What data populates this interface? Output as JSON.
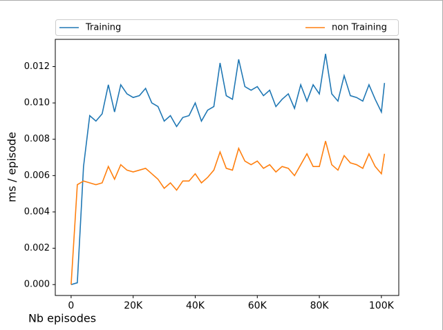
{
  "chart_data": {
    "type": "line",
    "xlabel": "Nb episodes",
    "ylabel": "ms / episode",
    "x": [
      0,
      2000,
      4000,
      6000,
      8000,
      10000,
      12000,
      14000,
      16000,
      18000,
      20000,
      22000,
      24000,
      26000,
      28000,
      30000,
      32000,
      34000,
      36000,
      38000,
      40000,
      42000,
      44000,
      46000,
      48000,
      50000,
      52000,
      54000,
      56000,
      58000,
      60000,
      62000,
      64000,
      66000,
      68000,
      70000,
      72000,
      74000,
      76000,
      78000,
      80000,
      82000,
      84000,
      86000,
      88000,
      90000,
      92000,
      94000,
      96000,
      98000,
      100000,
      101000
    ],
    "series": [
      {
        "name": "Training",
        "color": "#1f77b4",
        "values": [
          0.0,
          0.0001,
          0.0065,
          0.0093,
          0.009,
          0.0094,
          0.011,
          0.0095,
          0.011,
          0.0105,
          0.0103,
          0.0104,
          0.0108,
          0.01,
          0.0098,
          0.009,
          0.0093,
          0.0087,
          0.0092,
          0.0093,
          0.01,
          0.009,
          0.0096,
          0.0098,
          0.0122,
          0.0104,
          0.0102,
          0.0124,
          0.0109,
          0.0107,
          0.0109,
          0.0104,
          0.0107,
          0.0098,
          0.0102,
          0.0105,
          0.0097,
          0.011,
          0.0101,
          0.011,
          0.0105,
          0.0127,
          0.0105,
          0.0101,
          0.0115,
          0.0104,
          0.0103,
          0.0101,
          0.011,
          0.0102,
          0.0095,
          0.0111
        ]
      },
      {
        "name": "non Training",
        "color": "#ff7f0e",
        "values": [
          0.0,
          0.0055,
          0.0057,
          0.0056,
          0.0055,
          0.0056,
          0.0065,
          0.0058,
          0.0066,
          0.0063,
          0.0062,
          0.0063,
          0.0064,
          0.0061,
          0.0058,
          0.0053,
          0.0056,
          0.0052,
          0.0057,
          0.0057,
          0.0061,
          0.0056,
          0.0059,
          0.0063,
          0.0073,
          0.0064,
          0.0063,
          0.0075,
          0.0068,
          0.0066,
          0.0068,
          0.0064,
          0.0066,
          0.0062,
          0.0065,
          0.0064,
          0.006,
          0.0066,
          0.0072,
          0.0065,
          0.0065,
          0.0079,
          0.0066,
          0.0063,
          0.0071,
          0.0067,
          0.0066,
          0.0064,
          0.0072,
          0.0065,
          0.0061,
          0.0072
        ]
      }
    ],
    "xlim": [
      -5100,
      105600
    ],
    "xticks": [
      0,
      {
        "value": 20000,
        "label": "20K"
      },
      {
        "value": 40000,
        "label": "40K"
      },
      {
        "value": 60000,
        "label": "60K"
      },
      {
        "value": 80000,
        "label": "80K"
      },
      {
        "value": 100000,
        "label": "100K"
      }
    ],
    "ylim": [
      -0.0006,
      0.0135
    ],
    "yticks": [
      {
        "value": 0,
        "label": "0.000"
      },
      {
        "value": 0.002,
        "label": "0.002"
      },
      {
        "value": 0.004,
        "label": "0.004"
      },
      {
        "value": 0.006,
        "label": "0.006"
      },
      {
        "value": 0.008,
        "label": "0.008"
      },
      {
        "value": 0.01,
        "label": "0.010"
      },
      {
        "value": 0.012,
        "label": "0.012"
      }
    ],
    "legend": "top"
  }
}
